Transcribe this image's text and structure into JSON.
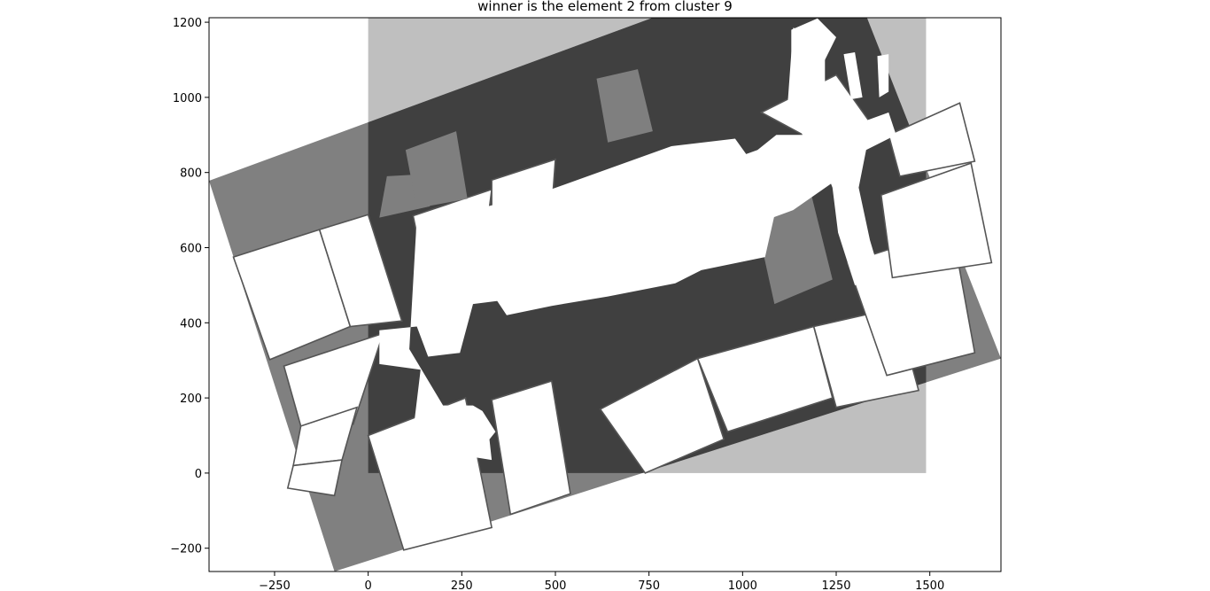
{
  "chart_data": {
    "type": "map-overlay",
    "title": "winner is the element 2 from cluster 9",
    "xlabel": "",
    "ylabel": "",
    "xlim": [
      -425,
      1690
    ],
    "ylim": [
      -262,
      1212
    ],
    "x_ticks": [
      -250,
      0,
      250,
      500,
      750,
      1000,
      1250,
      1500
    ],
    "y_ticks": [
      -200,
      0,
      200,
      400,
      600,
      800,
      1000,
      1200
    ],
    "grid": false,
    "layers": [
      {
        "name": "reference-map-extent",
        "kind": "rectangle",
        "x_range": [
          0,
          1490
        ],
        "y_range": [
          0,
          1212
        ],
        "color": "#bfbfbf"
      },
      {
        "name": "rotated-map-extent",
        "kind": "polygon",
        "vertices": [
          [
            -425,
            778
          ],
          [
            1260,
            1395
          ],
          [
            1690,
            305
          ],
          [
            -90,
            -262
          ]
        ],
        "color": "#808080"
      },
      {
        "name": "overlap",
        "color": "#404040"
      }
    ],
    "rotated_room_polygons": [
      [
        [
          -360,
          575
        ],
        [
          -130,
          648
        ],
        [
          -48,
          390
        ],
        [
          -263,
          302
        ]
      ],
      [
        [
          -130,
          648
        ],
        [
          0,
          688
        ],
        [
          90,
          405
        ],
        [
          -48,
          390
        ]
      ],
      [
        [
          -225,
          285
        ],
        [
          40,
          372
        ],
        [
          -40,
          130
        ],
        [
          -180,
          125
        ]
      ],
      [
        [
          -180,
          125
        ],
        [
          -30,
          175
        ],
        [
          -70,
          35
        ],
        [
          -200,
          20
        ]
      ],
      [
        [
          -200,
          20
        ],
        [
          -70,
          35
        ],
        [
          -90,
          -60
        ],
        [
          -215,
          -40
        ]
      ],
      [
        [
          0,
          100
        ],
        [
          260,
          200
        ],
        [
          330,
          -145
        ],
        [
          95,
          -205
        ]
      ],
      [
        [
          330,
          195
        ],
        [
          490,
          245
        ],
        [
          540,
          -55
        ],
        [
          380,
          -110
        ]
      ],
      [
        [
          620,
          170
        ],
        [
          880,
          305
        ],
        [
          950,
          90
        ],
        [
          740,
          0
        ]
      ],
      [
        [
          880,
          305
        ],
        [
          1190,
          390
        ],
        [
          1240,
          200
        ],
        [
          960,
          110
        ]
      ],
      [
        [
          1190,
          390
        ],
        [
          1410,
          440
        ],
        [
          1470,
          220
        ],
        [
          1250,
          175
        ]
      ],
      [
        [
          1280,
          560
        ],
        [
          1560,
          650
        ],
        [
          1620,
          320
        ],
        [
          1385,
          260
        ]
      ],
      [
        [
          1370,
          740
        ],
        [
          1610,
          825
        ],
        [
          1665,
          560
        ],
        [
          1400,
          520
        ]
      ],
      [
        [
          1390,
          900
        ],
        [
          1580,
          985
        ],
        [
          1620,
          830
        ],
        [
          1420,
          790
        ]
      ],
      [
        [
          120,
          685
        ],
        [
          330,
          755
        ],
        [
          300,
          520
        ],
        [
          160,
          490
        ]
      ],
      [
        [
          330,
          780
        ],
        [
          500,
          835
        ],
        [
          480,
          560
        ],
        [
          330,
          540
        ]
      ],
      [
        [
          1050,
          960
        ],
        [
          1250,
          1060
        ],
        [
          1350,
          920
        ],
        [
          1180,
          890
        ]
      ]
    ],
    "free_space_polygons": [
      [
        [
          130,
          680
        ],
        [
          310,
          735
        ],
        [
          400,
          465
        ],
        [
          280,
          450
        ],
        [
          245,
          320
        ],
        [
          160,
          310
        ],
        [
          130,
          390
        ],
        [
          30,
          380
        ],
        [
          30,
          290
        ],
        [
          140,
          275
        ],
        [
          120,
          110
        ],
        [
          230,
          85
        ],
        [
          300,
          60
        ],
        [
          340,
          110
        ],
        [
          305,
          165
        ],
        [
          280,
          180
        ],
        [
          200,
          180
        ],
        [
          110,
          330
        ]
      ],
      [
        [
          95,
          20
        ],
        [
          170,
          45
        ],
        [
          175,
          100
        ],
        [
          240,
          140
        ],
        [
          265,
          45
        ],
        [
          330,
          35
        ],
        [
          320,
          125
        ],
        [
          255,
          165
        ],
        [
          180,
          165
        ],
        [
          150,
          120
        ],
        [
          110,
          130
        ]
      ],
      [
        [
          240,
          690
        ],
        [
          460,
          745
        ],
        [
          810,
          870
        ],
        [
          980,
          890
        ],
        [
          1095,
          730
        ],
        [
          1060,
          575
        ],
        [
          890,
          540
        ],
        [
          820,
          505
        ],
        [
          640,
          470
        ],
        [
          490,
          445
        ],
        [
          370,
          420
        ],
        [
          330,
          480
        ],
        [
          350,
          630
        ],
        [
          290,
          690
        ]
      ],
      [
        [
          760,
          760
        ],
        [
          1040,
          860
        ],
        [
          1090,
          900
        ],
        [
          1230,
          900
        ],
        [
          1275,
          840
        ],
        [
          1250,
          780
        ],
        [
          1135,
          700
        ],
        [
          1040,
          665
        ],
        [
          920,
          640
        ],
        [
          780,
          650
        ]
      ],
      [
        [
          1135,
          1185
        ],
        [
          1220,
          1160
        ],
        [
          1220,
          960
        ],
        [
          1280,
          920
        ],
        [
          1390,
          960
        ],
        [
          1410,
          900
        ],
        [
          1330,
          860
        ],
        [
          1310,
          760
        ],
        [
          1340,
          620
        ],
        [
          1370,
          520
        ],
        [
          1300,
          500
        ],
        [
          1255,
          640
        ],
        [
          1240,
          760
        ],
        [
          1205,
          850
        ],
        [
          1160,
          900
        ],
        [
          1120,
          980
        ]
      ],
      [
        [
          1130,
          1180
        ],
        [
          1200,
          1210
        ],
        [
          1250,
          1160
        ],
        [
          1215,
          1090
        ],
        [
          1190,
          1045
        ],
        [
          1130,
          1050
        ]
      ],
      [
        [
          1270,
          1115
        ],
        [
          1300,
          1120
        ],
        [
          1320,
          1000
        ],
        [
          1290,
          995
        ]
      ],
      [
        [
          1360,
          1110
        ],
        [
          1390,
          1115
        ],
        [
          1390,
          1015
        ],
        [
          1365,
          1000
        ]
      ]
    ],
    "inner_gray_patches": [
      [
        [
          30,
          680
        ],
        [
          165,
          710
        ],
        [
          140,
          795
        ],
        [
          50,
          790
        ]
      ],
      [
        [
          100,
          860
        ],
        [
          235,
          910
        ],
        [
          265,
          730
        ],
        [
          130,
          705
        ]
      ],
      [
        [
          610,
          1050
        ],
        [
          720,
          1075
        ],
        [
          760,
          910
        ],
        [
          640,
          880
        ]
      ],
      [
        [
          1030,
          700
        ],
        [
          1180,
          755
        ],
        [
          1240,
          515
        ],
        [
          1085,
          450
        ]
      ],
      [
        [
          1030,
          695
        ],
        [
          1180,
          740
        ],
        [
          1190,
          755
        ],
        [
          1030,
          705
        ]
      ]
    ]
  }
}
